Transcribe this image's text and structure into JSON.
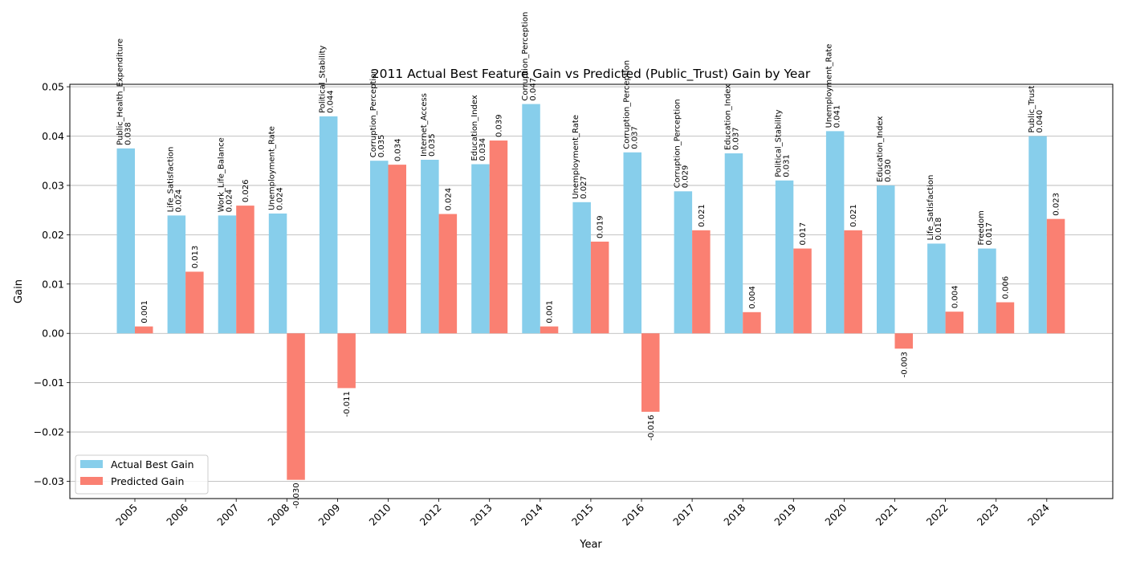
{
  "chart_data": {
    "type": "bar",
    "title": "2011 Actual Best Feature Gain vs Predicted (Public_Trust) Gain by Year",
    "xlabel": "Year",
    "ylabel": "Gain",
    "ylim": [
      -0.0335,
      0.0505
    ],
    "yticks": [
      -0.03,
      -0.02,
      -0.01,
      0.0,
      0.01,
      0.02,
      0.03,
      0.04,
      0.05
    ],
    "ytick_labels": [
      "−0.03",
      "−0.02",
      "−0.01",
      "0.00",
      "0.01",
      "0.02",
      "0.03",
      "0.04",
      "0.05"
    ],
    "grid": "horizontal",
    "legend_position": "lower-left",
    "categories": [
      "2005",
      "2006",
      "2007",
      "2008",
      "2009",
      "2010",
      "2012",
      "2013",
      "2014",
      "2015",
      "2016",
      "2017",
      "2018",
      "2019",
      "2020",
      "2021",
      "2022",
      "2023",
      "2024"
    ],
    "series": [
      {
        "name": "Actual Best Gain",
        "color": "#87ceeb",
        "values": [
          0.0375,
          0.0239,
          0.0239,
          0.0243,
          0.044,
          0.035,
          0.0352,
          0.0343,
          0.0465,
          0.0266,
          0.0367,
          0.0288,
          0.0365,
          0.031,
          0.041,
          0.03,
          0.0182,
          0.0172,
          0.04
        ],
        "labels": [
          "0.038",
          "0.024",
          "0.024",
          "0.024",
          "0.044",
          "0.035",
          "0.035",
          "0.034",
          "0.047",
          "0.027",
          "0.037",
          "0.029",
          "0.037",
          "0.031",
          "0.041",
          "0.030",
          "0.018",
          "0.017",
          "0.040"
        ],
        "features": [
          "Public_Health_Expenditure",
          "Life_Satisfaction",
          "Work_Life_Balance",
          "Unemployment_Rate",
          "Political_Stability",
          "Corruption_Perception",
          "Internet_Access",
          "Education_Index",
          "Corruption_Perception",
          "Unemployment_Rate",
          "Corruption_Perception",
          "Corruption_Perception",
          "Education_Index",
          "Political_Stability",
          "Unemployment_Rate",
          "Education_Index",
          "Life_Satisfaction",
          "Freedom",
          "Public_Trust"
        ]
      },
      {
        "name": "Predicted Gain",
        "color": "#fa8072",
        "values": [
          0.0014,
          0.0125,
          0.0259,
          -0.0297,
          -0.0111,
          0.0342,
          0.0242,
          0.0391,
          0.0014,
          0.0186,
          -0.0159,
          0.0209,
          0.0043,
          0.0172,
          0.0209,
          -0.0031,
          0.0044,
          0.0063,
          0.0232
        ],
        "labels": [
          "0.001",
          "0.013",
          "0.026",
          "-0.030",
          "-0.011",
          "0.034",
          "0.024",
          "0.039",
          "0.001",
          "0.019",
          "-0.016",
          "0.021",
          "0.004",
          "0.017",
          "0.021",
          "-0.003",
          "0.004",
          "0.006",
          "0.023"
        ]
      }
    ]
  }
}
